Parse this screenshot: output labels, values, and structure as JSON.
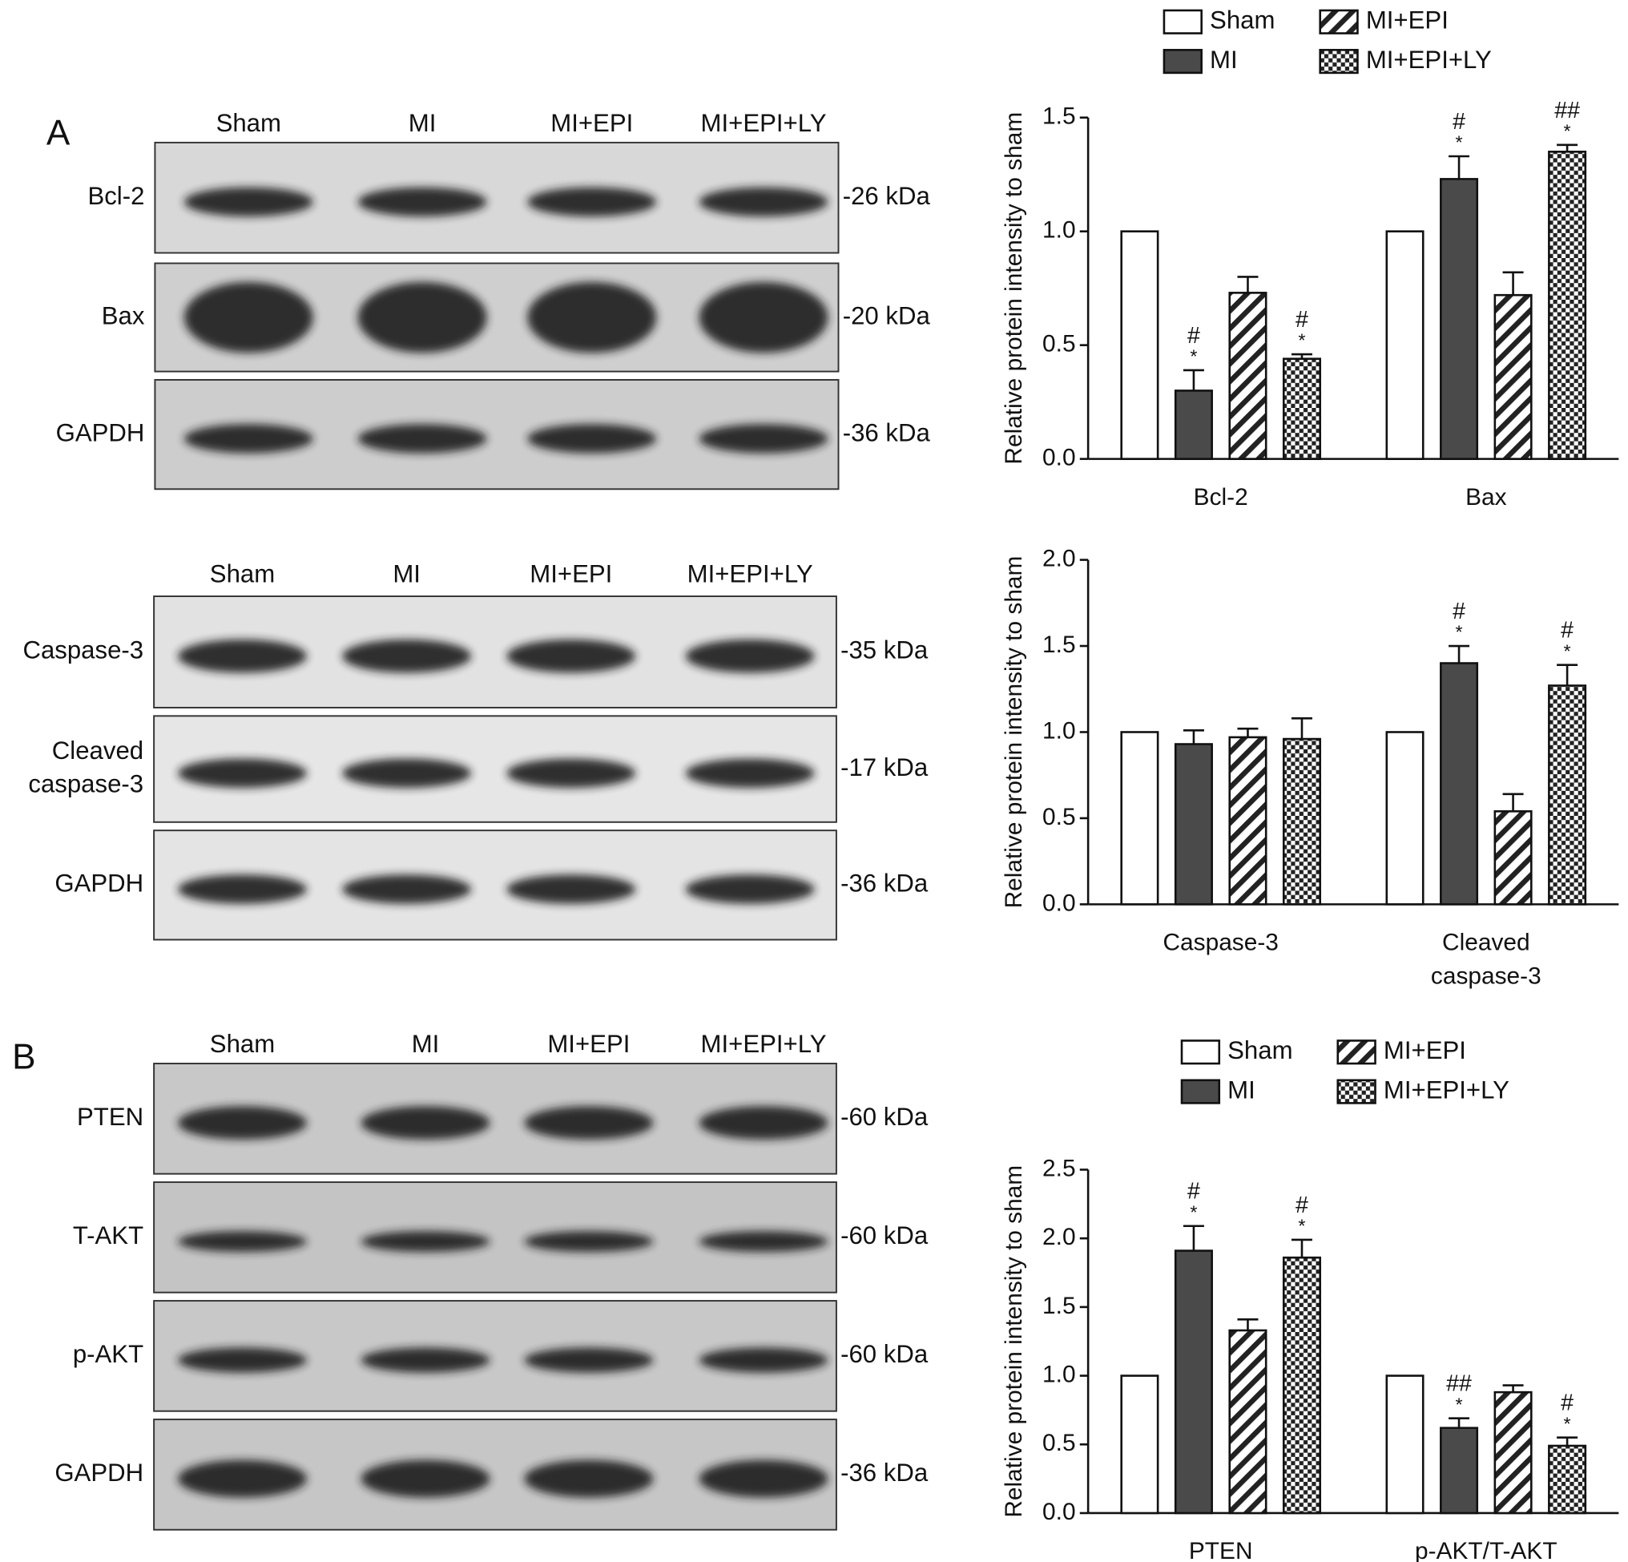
{
  "panel_labels": [
    "A",
    "B"
  ],
  "blots": [
    {
      "lanes": [
        "Sham",
        "MI",
        "MI+EPI",
        "MI+EPI+LY"
      ],
      "rows": [
        {
          "label": "Bcl-2",
          "size": "-26 kDa"
        },
        {
          "label": "Bax",
          "size": "-20 kDa"
        },
        {
          "label": "GAPDH",
          "size": "-36 kDa"
        }
      ]
    },
    {
      "lanes": [
        "Sham",
        "MI",
        "MI+EPI",
        "MI+EPI+LY"
      ],
      "rows": [
        {
          "label": "Caspase-3",
          "size": "-35 kDa"
        },
        {
          "label": "Cleaved\ncaspase-3",
          "size": "-17 kDa"
        },
        {
          "label": "GAPDH",
          "size": "-36 kDa"
        }
      ]
    },
    {
      "lanes": [
        "Sham",
        "MI",
        "MI+EPI",
        "MI+EPI+LY"
      ],
      "rows": [
        {
          "label": "PTEN",
          "size": "-60 kDa"
        },
        {
          "label": "T-AKT",
          "size": "-60 kDa"
        },
        {
          "label": "p-AKT",
          "size": "-60 kDa"
        },
        {
          "label": "GAPDH",
          "size": "-36 kDa"
        }
      ]
    }
  ],
  "chart_data": [
    {
      "type": "bar",
      "ylabel": "Relative protein intensity to sham",
      "legend": true,
      "categories": [
        "Bcl-2",
        "Bax"
      ],
      "ylim": [
        0,
        1.5
      ],
      "yticks": [
        {
          "value": 0,
          "label": "0.0"
        },
        {
          "value": 0.5,
          "label": "0.5"
        },
        {
          "value": 1,
          "label": "1.0"
        },
        {
          "value": 1.5,
          "label": "1.5"
        }
      ],
      "series": [
        {
          "name": "Sham",
          "color": "#ffffff",
          "pattern": null,
          "values": [
            1.0,
            1.0
          ],
          "errors": [
            null,
            null
          ],
          "annotations": [
            null,
            null
          ]
        },
        {
          "name": "MI",
          "color": "#4a4a4a",
          "pattern": null,
          "values": [
            0.3,
            1.23
          ],
          "errors": [
            0.09,
            0.1
          ],
          "annotations": [
            [
              "#",
              "*"
            ],
            [
              "#",
              "*"
            ]
          ]
        },
        {
          "name": "MI+EPI",
          "color": "#222222",
          "pattern": "hatch",
          "values": [
            0.73,
            0.72
          ],
          "errors": [
            0.07,
            0.1
          ],
          "annotations": [
            null,
            null
          ]
        },
        {
          "name": "MI+EPI+LY",
          "color": "#222222",
          "pattern": "checker",
          "values": [
            0.44,
            1.35
          ],
          "errors": [
            0.02,
            0.03
          ],
          "annotations": [
            [
              "#",
              "*"
            ],
            [
              "##",
              "*"
            ]
          ]
        }
      ]
    },
    {
      "type": "bar",
      "ylabel": "Relative protein intensity to sham",
      "legend": false,
      "categories": [
        "Caspase-3",
        "Cleaved\ncaspase-3"
      ],
      "ylim": [
        0,
        2
      ],
      "yticks": [
        {
          "value": 0,
          "label": "0.0"
        },
        {
          "value": 0.5,
          "label": "0.5"
        },
        {
          "value": 1,
          "label": "1.0"
        },
        {
          "value": 1.5,
          "label": "1.5"
        },
        {
          "value": 2,
          "label": "2.0"
        }
      ],
      "series": [
        {
          "name": "Sham",
          "color": "#ffffff",
          "pattern": null,
          "values": [
            1.0,
            1.0
          ],
          "errors": [
            null,
            null
          ],
          "annotations": [
            null,
            null
          ]
        },
        {
          "name": "MI",
          "color": "#4a4a4a",
          "pattern": null,
          "values": [
            0.93,
            1.4
          ],
          "errors": [
            0.08,
            0.1
          ],
          "annotations": [
            null,
            [
              "#",
              "*"
            ]
          ]
        },
        {
          "name": "MI+EPI",
          "color": "#222222",
          "pattern": "hatch",
          "values": [
            0.97,
            0.54
          ],
          "errors": [
            0.05,
            0.1
          ],
          "annotations": [
            null,
            null
          ]
        },
        {
          "name": "MI+EPI+LY",
          "color": "#222222",
          "pattern": "checker",
          "values": [
            0.96,
            1.27
          ],
          "errors": [
            0.12,
            0.12
          ],
          "annotations": [
            null,
            [
              "#",
              "*"
            ]
          ]
        }
      ]
    },
    {
      "type": "bar",
      "ylabel": "Relative protein intensity to sham",
      "legend": true,
      "categories": [
        "PTEN",
        "p-AKT/T-AKT"
      ],
      "ylim": [
        0,
        2.5
      ],
      "yticks": [
        {
          "value": 0,
          "label": "0.0"
        },
        {
          "value": 0.5,
          "label": "0.5"
        },
        {
          "value": 1,
          "label": "1.0"
        },
        {
          "value": 1.5,
          "label": "1.5"
        },
        {
          "value": 2,
          "label": "2.0"
        },
        {
          "value": 2.5,
          "label": "2.5"
        }
      ],
      "series": [
        {
          "name": "Sham",
          "color": "#ffffff",
          "pattern": null,
          "values": [
            1.0,
            1.0
          ],
          "errors": [
            null,
            null
          ],
          "annotations": [
            null,
            null
          ]
        },
        {
          "name": "MI",
          "color": "#4a4a4a",
          "pattern": null,
          "values": [
            1.91,
            0.62
          ],
          "errors": [
            0.18,
            0.07
          ],
          "annotations": [
            [
              "#",
              "*"
            ],
            [
              "##",
              "*"
            ]
          ]
        },
        {
          "name": "MI+EPI",
          "color": "#222222",
          "pattern": "hatch",
          "values": [
            1.33,
            0.88
          ],
          "errors": [
            0.08,
            0.05
          ],
          "annotations": [
            null,
            null
          ]
        },
        {
          "name": "MI+EPI+LY",
          "color": "#222222",
          "pattern": "checker",
          "values": [
            1.86,
            0.49
          ],
          "errors": [
            0.13,
            0.06
          ],
          "annotations": [
            [
              "#",
              "*"
            ],
            [
              "#",
              "*"
            ]
          ]
        }
      ]
    }
  ]
}
